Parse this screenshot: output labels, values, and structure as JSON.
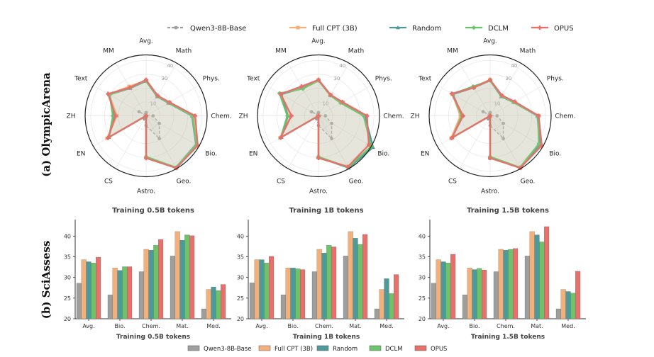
{
  "figure": {
    "row_labels": [
      "(a) OlympicArena",
      "(b) SciAssess"
    ]
  },
  "series_styles": [
    {
      "name": "Qwen3-8B-Base",
      "color": "#9e9e9e",
      "marker": "circle",
      "dashed": true
    },
    {
      "name": "Full CPT (3B)",
      "color": "#f4b07a",
      "marker": "square",
      "dashed": false
    },
    {
      "name": "Random",
      "color": "#4e9a9a",
      "marker": "triangle",
      "dashed": false
    },
    {
      "name": "DCLM",
      "color": "#6cc46a",
      "marker": "diamond",
      "dashed": false
    },
    {
      "name": "OPUS",
      "color": "#e8706a",
      "marker": "plus",
      "dashed": false
    }
  ],
  "chart_data": [
    {
      "type": "radar",
      "panel": "OlympicArena 0.5B",
      "title": "",
      "categories": [
        "Avg.",
        "Math",
        "Phys.",
        "Chem.",
        "Bio.",
        "Geo.",
        "Astro.",
        "CS",
        "EN",
        "ZH",
        "Text",
        "MM"
      ],
      "rticks": [
        10,
        30,
        40
      ],
      "rlim": [
        0,
        44
      ],
      "series": [
        {
          "name": "Qwen3-8B-Base",
          "values": [
            2.4,
            0.5,
            0,
            5,
            11,
            19,
            7,
            2.6,
            1,
            0,
            5.9,
            1.1
          ]
        },
        {
          "name": "Full CPT (3B)",
          "values": [
            25.5,
            16.5,
            19.5,
            34.5,
            42.5,
            43.5,
            30.0,
            0,
            32.5,
            21.0,
            31.0,
            24.5
          ]
        },
        {
          "name": "Random",
          "values": [
            25.0,
            16.0,
            18.5,
            33.0,
            41.5,
            43.0,
            30.0,
            0,
            31.0,
            23.0,
            30.5,
            23.0
          ]
        },
        {
          "name": "DCLM",
          "values": [
            25.3,
            16.3,
            18.8,
            33.5,
            42.0,
            43.0,
            29.5,
            0,
            31.0,
            24.0,
            30.5,
            23.5
          ]
        },
        {
          "name": "OPUS",
          "values": [
            26.0,
            16.8,
            19.5,
            35.4,
            43.0,
            43.6,
            30.6,
            0,
            31.7,
            22.0,
            31.7,
            23.5
          ]
        }
      ]
    },
    {
      "type": "radar",
      "panel": "OlympicArena 1B",
      "title": "",
      "categories": [
        "Avg.",
        "Math",
        "Phys.",
        "Chem.",
        "Bio.",
        "Geo.",
        "Astro.",
        "CS",
        "EN",
        "ZH",
        "Text",
        "MM"
      ],
      "rticks": [
        10,
        30,
        40
      ],
      "rlim": [
        0,
        44
      ],
      "series": [
        {
          "name": "Qwen3-8B-Base",
          "values": [
            2.4,
            0.5,
            0,
            5,
            11,
            19,
            7,
            2.6,
            1,
            0,
            5.9,
            1.1
          ]
        },
        {
          "name": "Full CPT (3B)",
          "values": [
            26.0,
            17.5,
            19.5,
            34.5,
            42.0,
            42.5,
            30.0,
            0,
            32.0,
            20.0,
            31.5,
            24.0
          ]
        },
        {
          "name": "Random",
          "values": [
            25.5,
            17.0,
            19.0,
            33.5,
            45.5,
            43.5,
            30.0,
            0,
            31.0,
            22.0,
            31.0,
            23.0
          ]
        },
        {
          "name": "DCLM",
          "values": [
            25.5,
            17.0,
            18.5,
            32.5,
            44.0,
            43.0,
            29.5,
            0,
            31.5,
            22.5,
            32.5,
            22.5
          ]
        },
        {
          "name": "OPUS",
          "values": [
            26.0,
            17.5,
            20.0,
            35.0,
            42.0,
            42.5,
            30.5,
            0,
            31.5,
            19.5,
            31.5,
            24.5
          ]
        }
      ]
    },
    {
      "type": "radar",
      "panel": "OlympicArena 1.5B",
      "title": "",
      "categories": [
        "Avg.",
        "Math",
        "Phys.",
        "Chem.",
        "Bio.",
        "Geo.",
        "Astro.",
        "CS",
        "EN",
        "ZH",
        "Text",
        "MM"
      ],
      "rticks": [
        10,
        30,
        40
      ],
      "rlim": [
        0,
        44
      ],
      "series": [
        {
          "name": "Qwen3-8B-Base",
          "values": [
            2.4,
            0.5,
            0,
            5,
            11,
            19,
            7,
            2.6,
            1,
            0,
            5.9,
            1.1
          ]
        },
        {
          "name": "Full CPT (3B)",
          "values": [
            26.0,
            16.5,
            20.0,
            35.0,
            42.0,
            43.5,
            30.0,
            0,
            32.5,
            21.5,
            31.5,
            24.0
          ]
        },
        {
          "name": "Random",
          "values": [
            25.5,
            16.0,
            19.5,
            34.0,
            41.5,
            43.0,
            30.5,
            0,
            31.5,
            20.0,
            31.0,
            23.5
          ]
        },
        {
          "name": "DCLM",
          "values": [
            25.5,
            16.5,
            19.5,
            34.5,
            40.5,
            43.0,
            29.5,
            0,
            31.5,
            20.5,
            31.5,
            24.5
          ]
        },
        {
          "name": "OPUS",
          "values": [
            26.0,
            17.0,
            20.5,
            35.0,
            43.0,
            43.5,
            30.5,
            0,
            32.0,
            19.5,
            32.0,
            23.5
          ]
        }
      ]
    },
    {
      "type": "bar",
      "panel": "SciAssess 0.5B",
      "title": "Training 0.5B tokens",
      "xlabel": "Training 0.5B tokens",
      "ylabel": "",
      "categories": [
        "Avg.",
        "Bio.",
        "Chem.",
        "Mat.",
        "Med."
      ],
      "ylim": [
        20,
        44
      ],
      "yticks": [
        20,
        25,
        30,
        35,
        40
      ],
      "series": [
        {
          "name": "Qwen3-8B-Base",
          "values": [
            28.6,
            25.8,
            31.4,
            35.2,
            22.4
          ]
        },
        {
          "name": "Full CPT (3B)",
          "values": [
            34.3,
            32.3,
            36.8,
            41.1,
            27.1
          ]
        },
        {
          "name": "Random",
          "values": [
            33.8,
            31.7,
            36.6,
            39.0,
            27.7
          ]
        },
        {
          "name": "DCLM",
          "values": [
            33.5,
            32.6,
            37.8,
            40.3,
            26.8
          ]
        },
        {
          "name": "OPUS",
          "values": [
            34.9,
            32.6,
            39.2,
            40.1,
            28.3
          ]
        }
      ]
    },
    {
      "type": "bar",
      "panel": "SciAssess 1B",
      "title": "Training 1B tokens",
      "xlabel": "Training 1B tokens",
      "ylabel": "",
      "categories": [
        "Avg.",
        "Bio.",
        "Chem.",
        "Mat.",
        "Med."
      ],
      "ylim": [
        20,
        44
      ],
      "yticks": [
        20,
        25,
        30,
        35,
        40
      ],
      "series": [
        {
          "name": "Qwen3-8B-Base",
          "values": [
            28.7,
            25.8,
            31.4,
            35.2,
            22.4
          ]
        },
        {
          "name": "Full CPT (3B)",
          "values": [
            34.3,
            32.3,
            36.8,
            41.1,
            27.1
          ]
        },
        {
          "name": "Random",
          "values": [
            34.3,
            32.3,
            35.9,
            39.5,
            29.7
          ]
        },
        {
          "name": "DCLM",
          "values": [
            33.5,
            32.1,
            37.8,
            38.0,
            26.1
          ]
        },
        {
          "name": "OPUS",
          "values": [
            35.1,
            31.9,
            37.4,
            40.4,
            30.7
          ]
        }
      ]
    },
    {
      "type": "bar",
      "panel": "SciAssess 1.5B",
      "title": "Training 1.5B tokens",
      "xlabel": "Training 1.5B tokens",
      "ylabel": "",
      "categories": [
        "Avg.",
        "Bio.",
        "Chem.",
        "Mat.",
        "Med."
      ],
      "ylim": [
        20,
        44
      ],
      "yticks": [
        20,
        25,
        30,
        35,
        40
      ],
      "series": [
        {
          "name": "Qwen3-8B-Base",
          "values": [
            28.6,
            25.8,
            31.4,
            35.2,
            22.4
          ]
        },
        {
          "name": "Full CPT (3B)",
          "values": [
            34.3,
            32.3,
            36.8,
            41.1,
            27.1
          ]
        },
        {
          "name": "Random",
          "values": [
            33.8,
            31.9,
            36.6,
            40.3,
            26.6
          ]
        },
        {
          "name": "DCLM",
          "values": [
            33.5,
            32.2,
            36.8,
            38.6,
            26.2
          ]
        },
        {
          "name": "OPUS",
          "values": [
            35.6,
            31.8,
            37.0,
            42.3,
            31.5
          ]
        }
      ]
    }
  ],
  "legends": {
    "top": [
      "Qwen3-8B-Base",
      "Full CPT (3B)",
      "Random",
      "DCLM",
      "OPUS"
    ],
    "bottom": [
      "Qwen3-8B-Base",
      "Full CPT (3B)",
      "Random",
      "DCLM",
      "OPUS"
    ]
  }
}
